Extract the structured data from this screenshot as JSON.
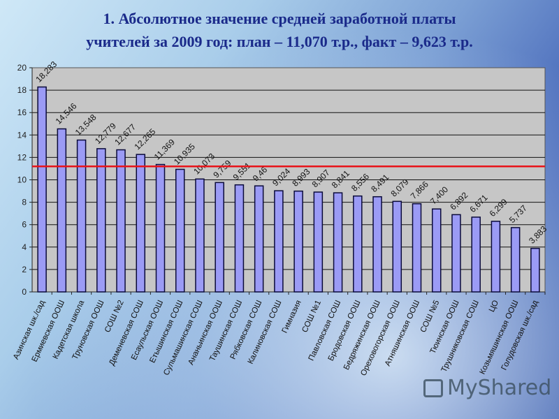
{
  "title": {
    "line1": "1. Абсолютное значение средней заработной платы",
    "line2": "учителей за 2009 год: план – 11,070 т.р., факт – 9,623 т.р."
  },
  "watermark": {
    "text": "MyShared",
    "icon": "presentation-board-icon"
  },
  "colors": {
    "bar_fill": "#9b9bf5",
    "bar_border": "#0a0a3a",
    "plot_bg": "#c6c6c6",
    "reference_line": "#e8141a",
    "gridline": "#111111",
    "title": "#1a2a8a"
  },
  "chart_data": {
    "type": "bar",
    "title": "1. Абсолютное значение средней заработной платы учителей за 2009 год: план – 11,070 т.р., факт – 9,623 т.р.",
    "xlabel": "",
    "ylabel": "",
    "ylim": [
      0,
      20
    ],
    "yticks": [
      0,
      2,
      4,
      6,
      8,
      10,
      12,
      14,
      16,
      18,
      20
    ],
    "grid": true,
    "legend": null,
    "reference_line": {
      "value": 11.2,
      "color": "#e8141a",
      "label": ""
    },
    "categories": [
      "Азинская шк./сад",
      "Ермиевская ООШ",
      "Кадетская школа",
      "Труновская ООШ",
      "СОШ №2",
      "Деменевская СОШ",
      "Есаульская ООШ",
      "Етышинская СОШ",
      "Сульмашинская СОШ",
      "Ананьинская ООШ",
      "Таушинская СОШ",
      "Рябковская СОШ",
      "Калиновская СОШ",
      "Гимназия",
      "СОШ №1",
      "Павловская СОШ",
      "Бродовская ООШ",
      "Бедряжинская ООШ",
      "Ореховогорская ООШ",
      "Атняшинская ООШ",
      "СОШ №5",
      "Тюинская ООШ",
      "Трушниковская СОШ",
      "ЦО",
      "Козьмяшинская ООШ",
      "Голудовская шк./сад"
    ],
    "values": [
      18.283,
      14.546,
      13.548,
      12.779,
      12.677,
      12.265,
      11.369,
      10.935,
      10.073,
      9.759,
      9.551,
      9.46,
      9.024,
      8.993,
      8.907,
      8.841,
      8.556,
      8.491,
      8.079,
      7.866,
      7.4,
      6.892,
      6.671,
      6.299,
      5.737,
      3.883
    ],
    "value_labels": [
      "18,283",
      "14,546",
      "13,548",
      "12,779",
      "12,677",
      "12,265",
      "11,369",
      "10,935",
      "10,073",
      "9,759",
      "9,551",
      "9,46",
      "9,024",
      "8,993",
      "8,907",
      "8,841",
      "8,556",
      "8,491",
      "8,079",
      "7,866",
      "7,400",
      "6,892",
      "6,671",
      "6,299",
      "5,737",
      "3,883"
    ]
  }
}
